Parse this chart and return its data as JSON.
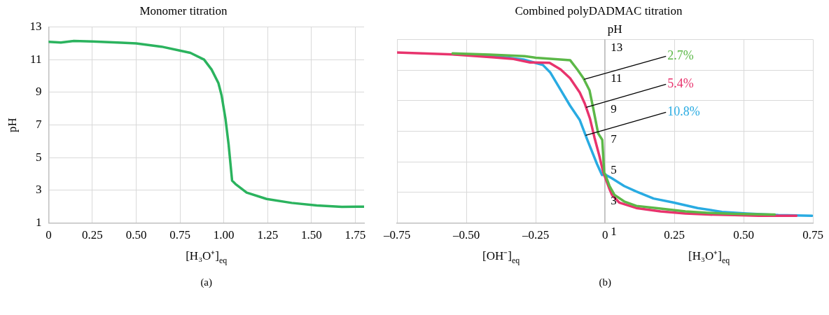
{
  "chart_data": [
    {
      "type": "line",
      "title": "Monomer titration",
      "xlabel": "[H₃O⁺]$_{eq}$",
      "ylabel": "pH",
      "annotations": [
        "(a)"
      ],
      "x": [
        0,
        0.07,
        0.144,
        0.25,
        0.416,
        0.5,
        0.644,
        0.744,
        0.809,
        0.887,
        0.93,
        0.969,
        0.987,
        1.009,
        1.027,
        1.047,
        1.066,
        1.13,
        1.244,
        1.387,
        1.53,
        1.673,
        1.8
      ],
      "values": [
        12.09,
        12.04,
        12.14,
        12.11,
        12.03,
        11.99,
        11.79,
        11.56,
        11.41,
        11.0,
        10.39,
        9.56,
        8.81,
        7.39,
        5.81,
        3.59,
        3.39,
        2.86,
        2.47,
        2.23,
        2.07,
        1.99,
        2.0
      ],
      "color": "#2bb35e",
      "xlim": [
        0,
        1.8
      ],
      "xticks": [
        0,
        0.25,
        {
          "value": 0.5,
          "label": "0.50"
        },
        0.75,
        {
          "value": 1,
          "label": "1.00"
        },
        1.25,
        {
          "value": 1.5,
          "label": "1.50"
        },
        1.75
      ],
      "ylim": [
        1,
        13
      ],
      "yticks": [
        1,
        3,
        5,
        7,
        9,
        11,
        13
      ],
      "grid": true
    },
    {
      "type": "line",
      "title": "Combined polyDADMAC titration",
      "xlabel": "[H₃O⁺]$_{eq}$",
      "ylabel": "pH",
      "annotations": [
        "[OH⁻]$_{eq}$",
        "(b)"
      ],
      "series": [
        {
          "name": "2.7%",
          "color": "#5cb848",
          "x": [
            -0.55,
            -0.416,
            -0.29,
            -0.25,
            -0.126,
            -0.1,
            -0.078,
            -0.056,
            -0.042,
            -0.025,
            -0.01,
            -0.003,
            0,
            0.016,
            0.034,
            0.069,
            0.113,
            0.184,
            0.29,
            0.378,
            0.466,
            0.612
          ],
          "values": [
            12.09,
            12.01,
            11.91,
            11.81,
            11.65,
            11.04,
            10.47,
            9.68,
            8.45,
            6.87,
            6.44,
            4.28,
            4.21,
            3.42,
            2.84,
            2.41,
            2.12,
            1.98,
            1.76,
            1.66,
            1.6,
            1.55
          ]
        },
        {
          "name": "5.4%",
          "color": "#e8336d",
          "x": [
            -0.75,
            -0.55,
            -0.4,
            -0.33,
            -0.27,
            -0.2,
            -0.16,
            -0.126,
            -0.091,
            -0.073,
            -0.054,
            -0.038,
            -0.02,
            -0.007,
            0.015,
            0.025,
            0.051,
            0.113,
            0.2,
            0.29,
            0.378,
            0.466,
            0.555,
            0.69
          ],
          "values": [
            12.15,
            12.02,
            11.83,
            11.72,
            11.5,
            11.47,
            11.04,
            10.47,
            9.53,
            8.81,
            7.81,
            6.58,
            5.36,
            4.35,
            3.27,
            2.84,
            2.34,
            1.98,
            1.76,
            1.62,
            1.55,
            1.52,
            1.47,
            1.47
          ]
        },
        {
          "name": "10.8%",
          "color": "#29abe2",
          "x": [
            -0.55,
            -0.4,
            -0.294,
            -0.224,
            -0.197,
            -0.171,
            -0.126,
            -0.091,
            -0.064,
            -0.029,
            -0.011,
            0,
            0.025,
            0.069,
            0.113,
            0.175,
            0.246,
            0.334,
            0.422,
            0.51,
            0.625,
            0.747
          ],
          "values": [
            12.05,
            11.91,
            11.69,
            11.33,
            10.83,
            10.04,
            8.67,
            7.73,
            6.44,
            4.86,
            4.14,
            4.17,
            3.92,
            3.42,
            3.06,
            2.6,
            2.34,
            1.98,
            1.73,
            1.62,
            1.52,
            1.47
          ]
        }
      ],
      "xlim": [
        -0.75,
        0.75
      ],
      "xticks": [
        {
          "value": -0.75,
          "label": "–0.75"
        },
        {
          "value": -0.5,
          "label": "–0.50"
        },
        {
          "value": -0.25,
          "label": "–0.25"
        },
        0,
        0.25,
        {
          "value": 0.5,
          "label": "0.50"
        },
        0.75
      ],
      "ylim": [
        1,
        13
      ],
      "yticks": [
        1,
        3,
        5,
        7,
        9,
        11,
        13
      ],
      "grid": true
    }
  ]
}
